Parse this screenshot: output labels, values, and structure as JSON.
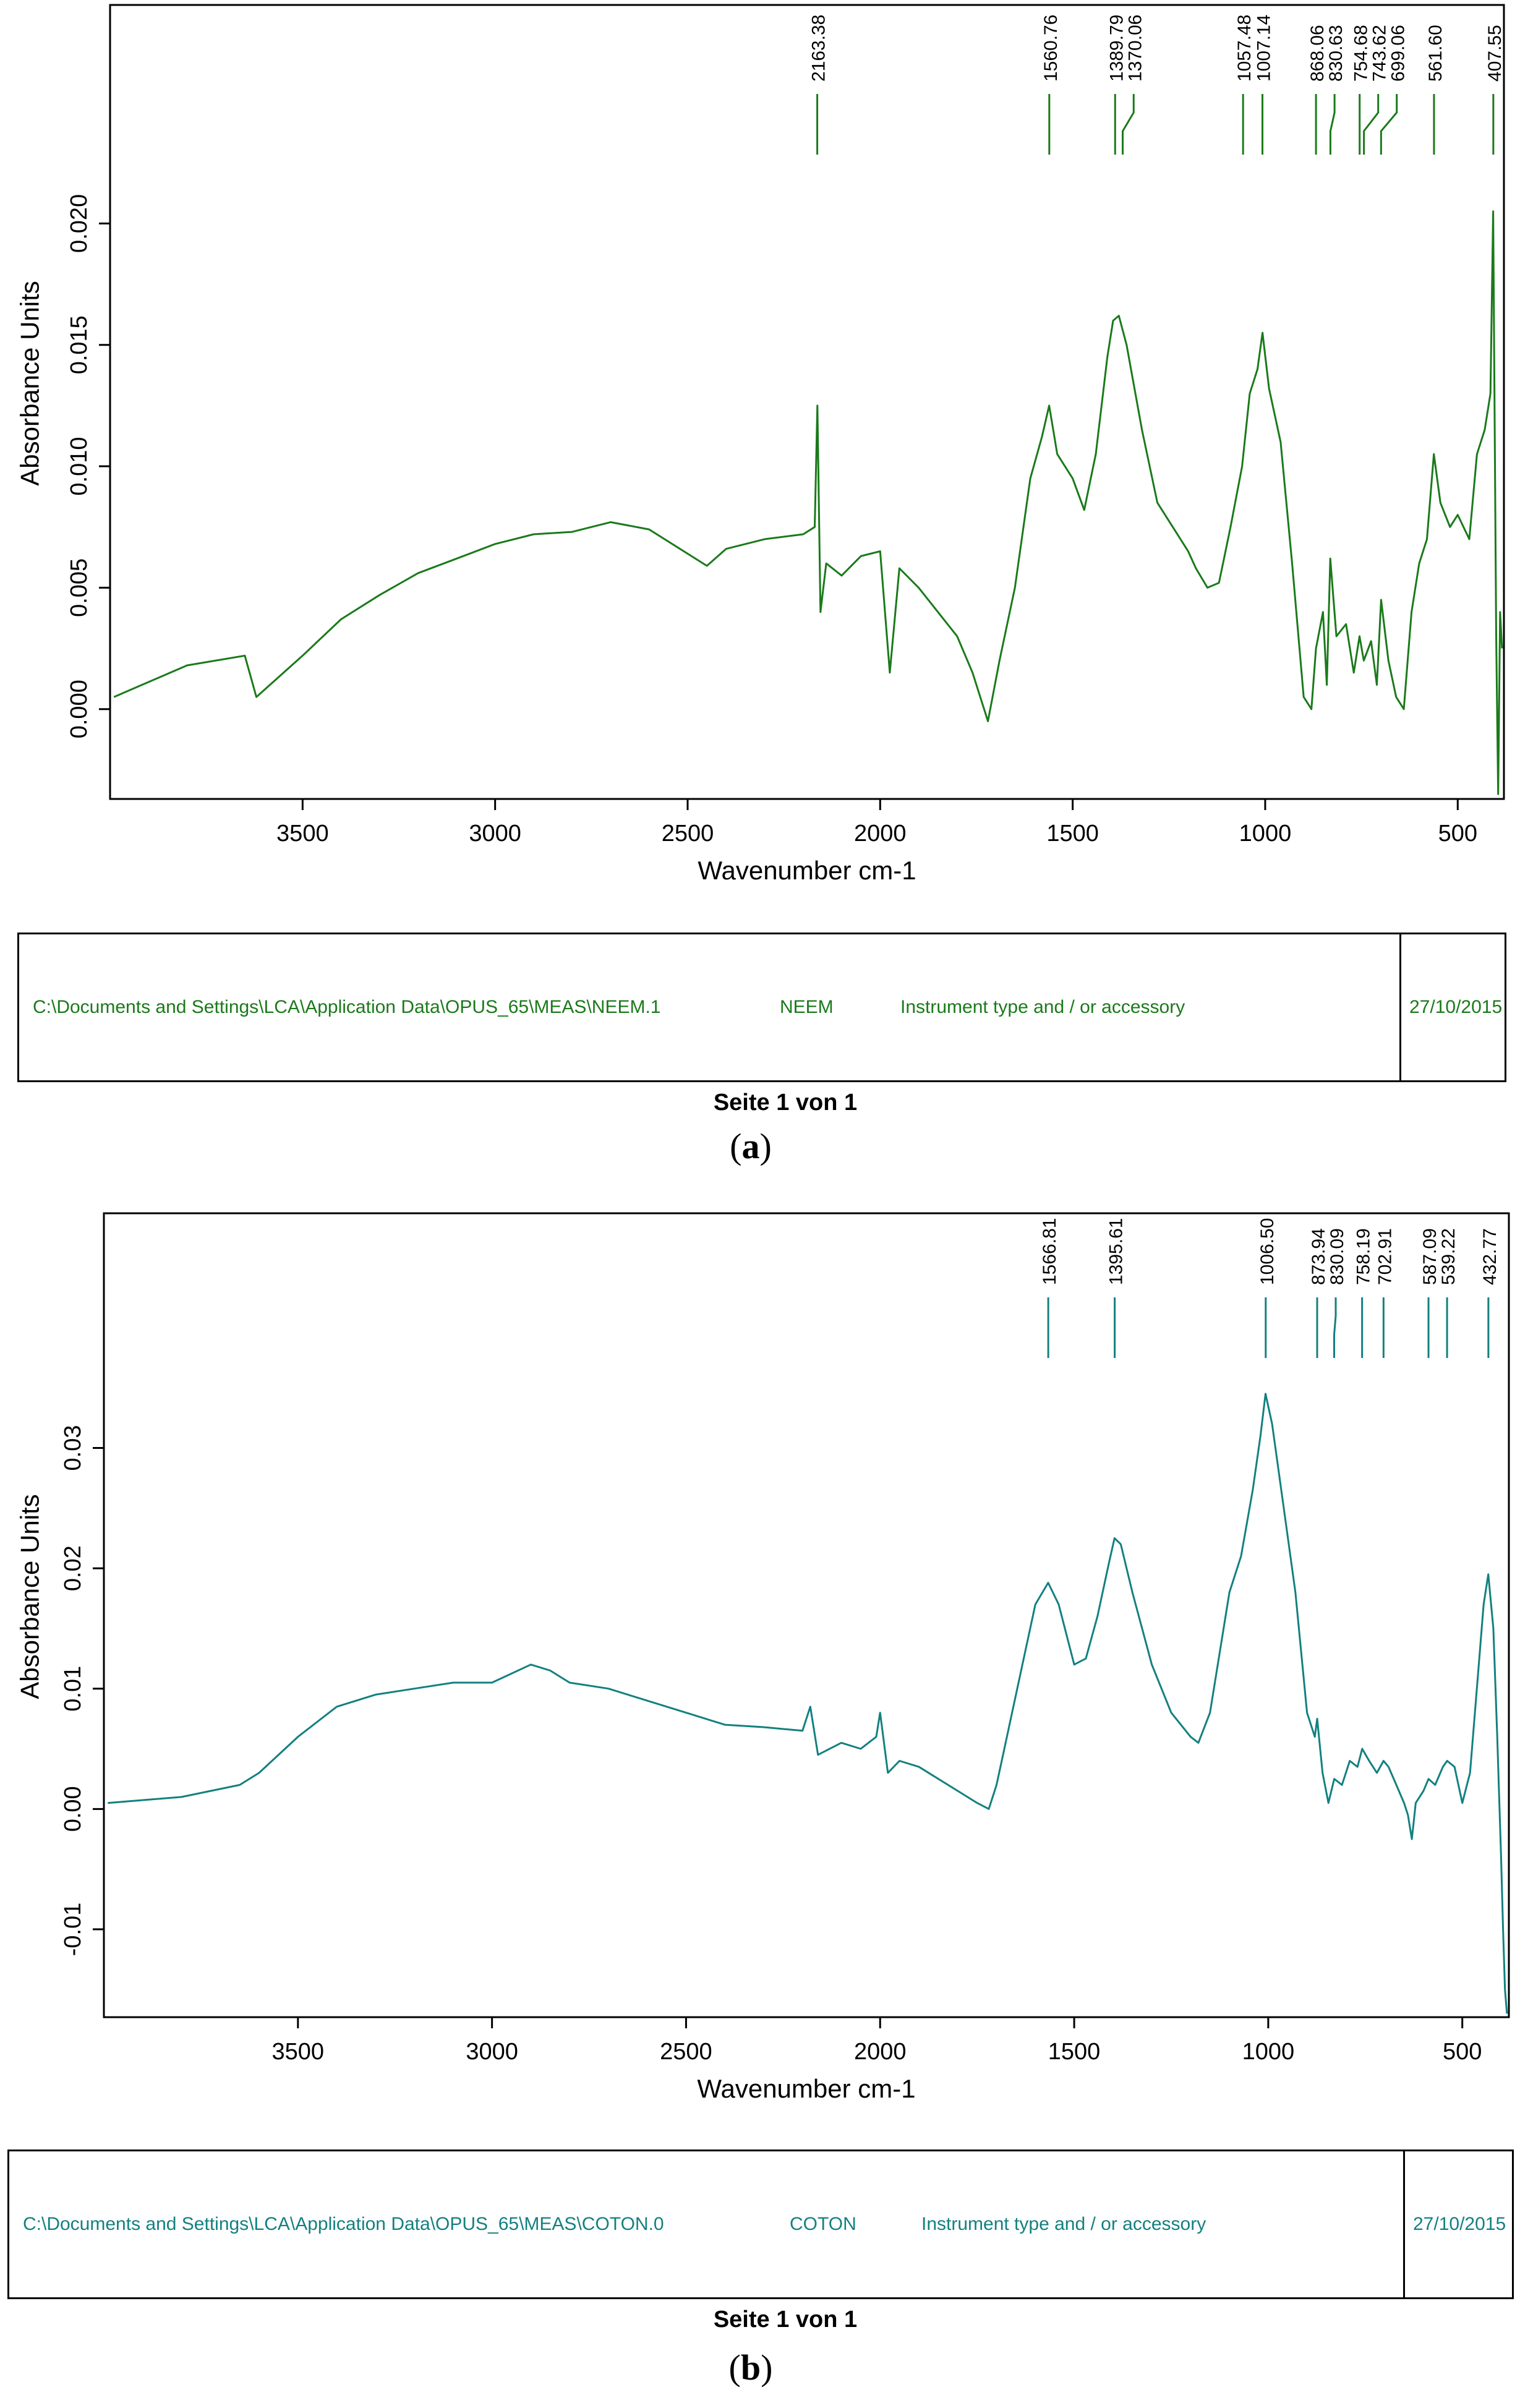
{
  "colors": {
    "a": "#1a7a1a",
    "b": "#138080"
  },
  "chart_data": [
    {
      "type": "line",
      "panel": "a",
      "xlabel": "Wavenumber cm-1",
      "ylabel": "Absorbance Units",
      "xlim": [
        4000,
        380
      ],
      "ylim": [
        -0.0037,
        0.029
      ],
      "x_ticks": [
        3500,
        3000,
        2500,
        2000,
        1500,
        1000,
        500
      ],
      "x_tick_labels": [
        "3500",
        "3000",
        "2500",
        "2000",
        "1500",
        "1000",
        "500"
      ],
      "y_ticks": [
        0.0,
        0.005,
        0.01,
        0.015,
        0.02
      ],
      "y_tick_labels": [
        "0.000",
        "0.005",
        "0.010",
        "0.015",
        "0.020"
      ],
      "peak_labels": [
        "2163.38",
        "1560.76",
        "1389.79",
        "1370.06",
        "1057.48",
        "1007.14",
        "868.06",
        "830.63",
        "754.68",
        "743.62",
        "699.06",
        "561.60",
        "407.55"
      ],
      "series": [
        {
          "name": "NEEM",
          "x": [
            3990,
            3800,
            3650,
            3620,
            3500,
            3400,
            3300,
            3200,
            3100,
            3000,
            2900,
            2800,
            2700,
            2600,
            2500,
            2450,
            2400,
            2300,
            2200,
            2170,
            2163,
            2155,
            2140,
            2100,
            2050,
            2000,
            1975,
            1950,
            1900,
            1850,
            1800,
            1760,
            1720,
            1690,
            1650,
            1610,
            1580,
            1561,
            1540,
            1500,
            1470,
            1440,
            1410,
            1395,
            1380,
            1360,
            1320,
            1280,
            1240,
            1200,
            1180,
            1150,
            1120,
            1090,
            1060,
            1040,
            1020,
            1007,
            990,
            960,
            930,
            900,
            880,
            868,
            850,
            840,
            831,
            815,
            790,
            770,
            755,
            744,
            725,
            710,
            699,
            680,
            660,
            640,
            620,
            600,
            580,
            562,
            545,
            520,
            500,
            470,
            450,
            430,
            415,
            408,
            400,
            395,
            390,
            385
          ],
          "y": [
            0.0005,
            0.0018,
            0.0022,
            0.0005,
            0.0022,
            0.0037,
            0.0047,
            0.0056,
            0.0062,
            0.0068,
            0.0072,
            0.0073,
            0.0077,
            0.0074,
            0.0064,
            0.0059,
            0.0066,
            0.007,
            0.0072,
            0.0075,
            0.0125,
            0.004,
            0.006,
            0.0055,
            0.0063,
            0.0065,
            0.0015,
            0.0058,
            0.005,
            0.004,
            0.003,
            0.0015,
            -0.0005,
            0.002,
            0.005,
            0.0095,
            0.0112,
            0.0125,
            0.0105,
            0.0095,
            0.0082,
            0.0105,
            0.0145,
            0.016,
            0.0162,
            0.015,
            0.0115,
            0.0085,
            0.0075,
            0.0065,
            0.0058,
            0.005,
            0.0052,
            0.0075,
            0.01,
            0.013,
            0.014,
            0.0155,
            0.0132,
            0.011,
            0.006,
            0.0005,
            0.0,
            0.0025,
            0.004,
            0.001,
            0.0062,
            0.003,
            0.0035,
            0.0015,
            0.003,
            0.002,
            0.0028,
            0.001,
            0.0045,
            0.002,
            0.0005,
            0.0,
            0.004,
            0.006,
            0.007,
            0.0105,
            0.0085,
            0.0075,
            0.008,
            0.007,
            0.0105,
            0.0115,
            0.013,
            0.0205,
            0.003,
            -0.0035,
            0.004,
            0.0025
          ]
        }
      ]
    },
    {
      "type": "line",
      "panel": "b",
      "xlabel": "Wavenumber cm-1",
      "ylabel": "Absorbance Units",
      "xlim": [
        4000,
        380
      ],
      "ylim": [
        -0.0173,
        0.0495
      ],
      "x_ticks": [
        3500,
        3000,
        2500,
        2000,
        1500,
        1000,
        500
      ],
      "x_tick_labels": [
        "3500",
        "3000",
        "2500",
        "2000",
        "1500",
        "1000",
        "500"
      ],
      "y_ticks": [
        -0.01,
        0.0,
        0.01,
        0.02,
        0.03
      ],
      "y_tick_labels": [
        "-0.01",
        "0.00",
        "0.01",
        "0.02",
        "0.03"
      ],
      "peak_labels": [
        "1566.81",
        "1395.61",
        "1006.50",
        "873.94",
        "830.09",
        "758.19",
        "702.91",
        "587.09",
        "539.22",
        "432.77"
      ],
      "series": [
        {
          "name": "COTON",
          "x": [
            3990,
            3800,
            3650,
            3600,
            3500,
            3400,
            3300,
            3200,
            3100,
            3000,
            2900,
            2850,
            2800,
            2700,
            2600,
            2500,
            2400,
            2300,
            2200,
            2180,
            2160,
            2100,
            2050,
            2010,
            2000,
            1980,
            1950,
            1900,
            1850,
            1800,
            1750,
            1720,
            1700,
            1680,
            1650,
            1620,
            1600,
            1567,
            1540,
            1500,
            1470,
            1440,
            1410,
            1396,
            1380,
            1350,
            1300,
            1250,
            1200,
            1180,
            1150,
            1100,
            1070,
            1040,
            1020,
            1007,
            990,
            960,
            930,
            900,
            880,
            874,
            860,
            845,
            830,
            810,
            790,
            770,
            758,
            740,
            720,
            703,
            690,
            670,
            650,
            640,
            630,
            620,
            600,
            587,
            570,
            550,
            539,
            520,
            500,
            480,
            460,
            445,
            433,
            420,
            410,
            400,
            395,
            390,
            385
          ],
          "y": [
            0.0005,
            0.001,
            0.002,
            0.003,
            0.006,
            0.0085,
            0.0095,
            0.01,
            0.0105,
            0.0105,
            0.012,
            0.0115,
            0.0105,
            0.01,
            0.009,
            0.008,
            0.007,
            0.0068,
            0.0065,
            0.0085,
            0.0045,
            0.0055,
            0.005,
            0.006,
            0.008,
            0.003,
            0.004,
            0.0035,
            0.0025,
            0.0015,
            0.0005,
            0.0,
            0.002,
            0.005,
            0.0095,
            0.014,
            0.017,
            0.0188,
            0.017,
            0.012,
            0.0125,
            0.016,
            0.0205,
            0.0225,
            0.022,
            0.018,
            0.012,
            0.008,
            0.006,
            0.0055,
            0.008,
            0.018,
            0.021,
            0.0265,
            0.031,
            0.0345,
            0.032,
            0.025,
            0.018,
            0.008,
            0.006,
            0.0075,
            0.003,
            0.0005,
            0.0025,
            0.002,
            0.004,
            0.0035,
            0.005,
            0.004,
            0.003,
            0.004,
            0.0035,
            0.002,
            0.0005,
            -0.0005,
            -0.0025,
            0.0005,
            0.0015,
            0.0025,
            0.002,
            0.0035,
            0.004,
            0.0035,
            0.0005,
            0.003,
            0.011,
            0.017,
            0.0195,
            0.015,
            0.006,
            -0.004,
            -0.01,
            -0.015,
            -0.017
          ]
        }
      ]
    }
  ],
  "info": {
    "a": {
      "path": "C:\\Documents and Settings\\LCA\\Application Data\\OPUS_65\\MEAS\\NEEM.1",
      "sample": "NEEM",
      "instrument": "Instrument type and / or accessory",
      "date": "27/10/2015"
    },
    "b": {
      "path": "C:\\Documents and Settings\\LCA\\Application Data\\OPUS_65\\MEAS\\COTON.0",
      "sample": "COTON",
      "instrument": "Instrument type and / or accessory",
      "date": "27/10/2015"
    }
  },
  "page_label": "Seite 1 von 1",
  "panel_labels": {
    "a_open": "(",
    "a": "a",
    "a_close": ")",
    "b_open": "(",
    "b": "b",
    "b_close": ")"
  }
}
